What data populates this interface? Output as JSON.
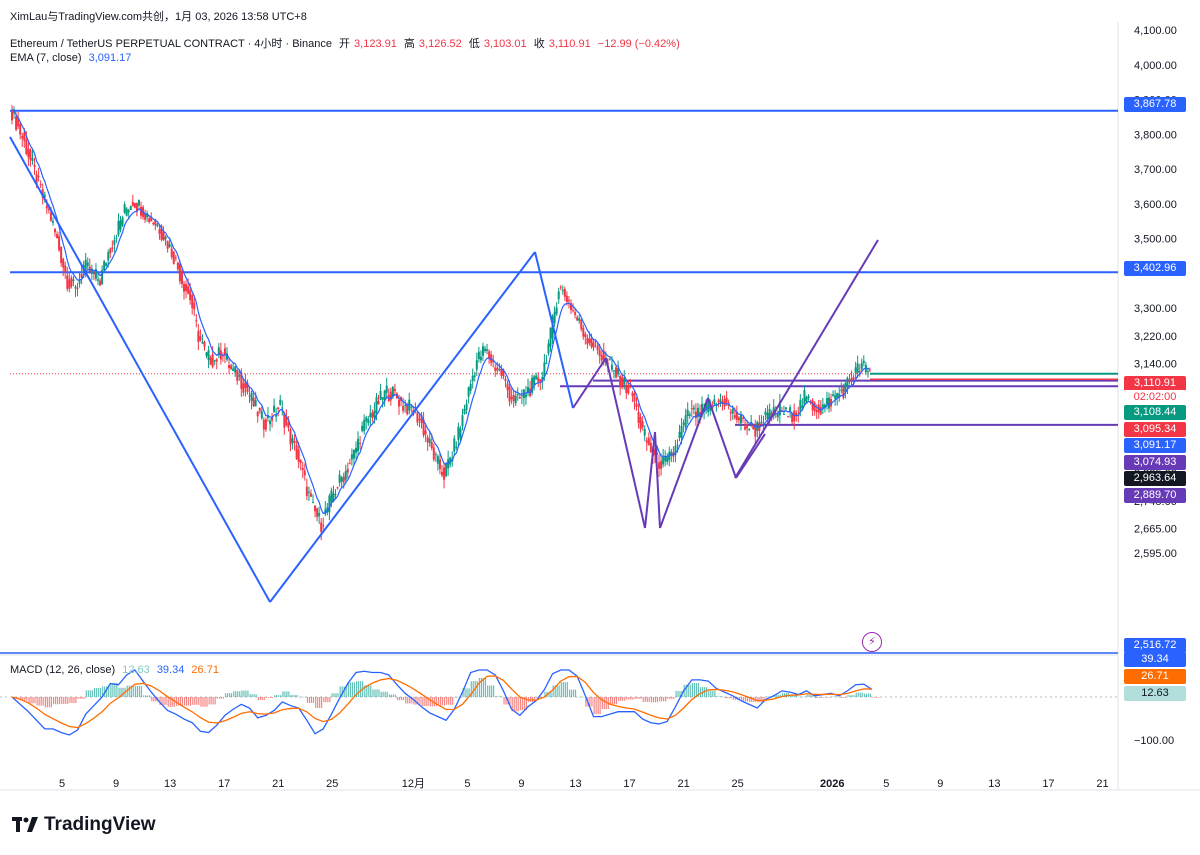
{
  "top": {
    "watermark": "XimLau与TradingView.com共创，1月 03, 2026 13:58 UTC+8"
  },
  "legend": {
    "symbol": "Ethereum / TetherUS PERPETUAL CONTRACT · 4小时 · Binance",
    "open_label": "开",
    "open_value": "3,123.91",
    "high_label": "高",
    "high_value": "3,126.52",
    "low_label": "低",
    "low_value": "3,103.01",
    "close_label": "收",
    "close_value": "3,110.91",
    "change": "−12.99 (−0.42%)",
    "ema_label": "EMA (7, close)",
    "ema_value": "3,091.17"
  },
  "macd_legend": {
    "label": "MACD (12, 26, close)",
    "hist_value": "12.63",
    "macd_value": "39.34",
    "signal_value": "26.71"
  },
  "price_axis": {
    "ticks": [
      "4,100.00",
      "4,000.00",
      "3,900.00",
      "3,800.00",
      "3,700.00",
      "3,600.00",
      "3,500.00",
      "3,300.00",
      "3,220.00",
      "3,140.00",
      "2,825.00",
      "2,745.00",
      "2,665.00",
      "2,595.00"
    ]
  },
  "price_tags": [
    {
      "text": "3,867.78",
      "color": "#2962ff"
    },
    {
      "text": "3,402.96",
      "color": "#2962ff"
    },
    {
      "text": "3,110.91",
      "color": "#f23645"
    },
    {
      "text": "02:02:00",
      "color": "#ffffff"
    },
    {
      "text": "3,108.44",
      "color": "#089981"
    },
    {
      "text": "3,095.34",
      "color": "#f23645"
    },
    {
      "text": "3,091.17",
      "color": "#2962ff"
    },
    {
      "text": "3,074.93",
      "color": "#673ab7"
    },
    {
      "text": "2,963.64",
      "color": "#131722"
    },
    {
      "text": "2,889.70",
      "color": "#673ab7"
    },
    {
      "text": "2,516.72",
      "color": "#2962ff"
    }
  ],
  "macd_axis": {
    "ticks": [
      "−100.00"
    ],
    "tags": [
      {
        "text": "39.34",
        "color": "#2962ff"
      },
      {
        "text": "26.71",
        "color": "#ff6d00"
      },
      {
        "text": "12.63",
        "color": "#b2dfdb"
      }
    ]
  },
  "time_axis": {
    "ticks": [
      "5",
      "9",
      "13",
      "17",
      "21",
      "25",
      "12月",
      "5",
      "9",
      "13",
      "17",
      "21",
      "25",
      "2026",
      "5",
      "9",
      "13",
      "17",
      "21"
    ]
  },
  "footer": {
    "brand": "TradingView"
  },
  "colors": {
    "up": "#089981",
    "down": "#f23645",
    "ema": "#2962ff",
    "trend": "#2962ff",
    "purple": "#673ab7",
    "macd": "#2962ff",
    "signal": "#ff6d00"
  },
  "chart_data": {
    "type": "candlestick",
    "symbol": "Ethereum / TetherUS PERPETUAL CONTRACT",
    "interval": "4小时",
    "ylim": [
      2560,
      4120
    ],
    "x_range_label": [
      "Nov 1 2025",
      "Jan 22 2026"
    ],
    "path_closes": [
      3880,
      3820,
      3760,
      3690,
      3620,
      3560,
      3470,
      3380,
      3350,
      3420,
      3400,
      3380,
      3460,
      3520,
      3580,
      3610,
      3590,
      3560,
      3540,
      3500,
      3450,
      3380,
      3330,
      3220,
      3160,
      3150,
      3180,
      3120,
      3100,
      3060,
      3010,
      2970,
      2990,
      3020,
      2940,
      2880,
      2800,
      2720,
      2680,
      2740,
      2790,
      2830,
      2880,
      2950,
      2990,
      3030,
      3060,
      3050,
      3020,
      3010,
      2980,
      2920,
      2860,
      2820,
      2880,
      2960,
      3060,
      3150,
      3180,
      3140,
      3110,
      3050,
      3030,
      3060,
      3080,
      3110,
      3220,
      3360,
      3330,
      3280,
      3230,
      3200,
      3170,
      3140,
      3110,
      3080,
      3050,
      2960,
      2900,
      2860,
      2850,
      2880,
      2950,
      3000,
      2990,
      3010,
      3020,
      3040,
      3000,
      2980,
      2960,
      2950,
      2980,
      2990,
      3010,
      2990,
      3000,
      3040,
      3020,
      3010,
      3030,
      3050,
      3070,
      3110,
      3135,
      3111
    ],
    "ema_label": "EMA (7, close)",
    "ema_last": 3091.17,
    "horizontal_lines": [
      3867.78,
      3402.96,
      2516.72,
      3091.17,
      3074.93,
      2963.64,
      2889.7,
      3110.91
    ],
    "trend_lines": [
      {
        "from": [
          "Nov 1",
          3770
        ],
        "to": [
          "Nov 21",
          2610
        ]
      },
      {
        "from": [
          "Nov 21",
          2610
        ],
        "to": [
          "Dec 9",
          3440
        ]
      },
      {
        "from": [
          "Dec 9",
          3440
        ],
        "to": [
          "Dec 13",
          3060
        ]
      },
      {
        "from": [
          "Dec 26",
          2963
        ],
        "to": [
          "Jan 4",
          3470
        ]
      }
    ],
    "macd": {
      "params": "12, 26, close",
      "histogram_last": 12.63,
      "macd_last": 39.34,
      "signal_last": 26.71
    }
  }
}
